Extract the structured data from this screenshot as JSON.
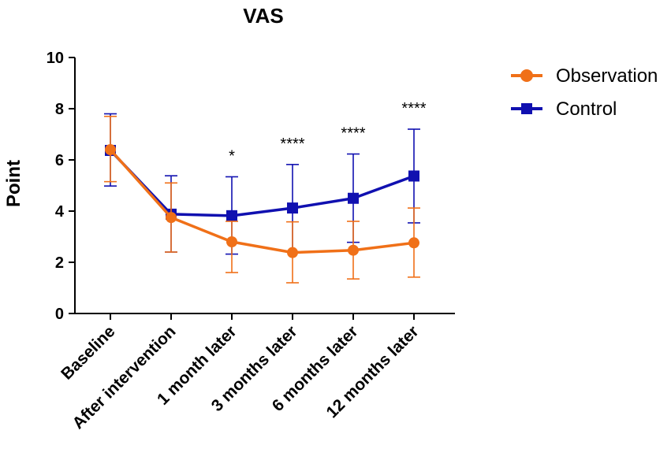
{
  "chart_data": {
    "type": "line",
    "title": "VAS",
    "xlabel": "",
    "ylabel": "Point",
    "ylim": [
      0,
      10
    ],
    "yticks": [
      "0",
      "2",
      "4",
      "6",
      "8",
      "10"
    ],
    "categories": [
      "Baseline",
      "After intervention",
      "1 month later",
      "3 months later",
      "6 months later",
      "12 months later"
    ],
    "series": [
      {
        "name": "Observation",
        "color": "#f07018",
        "marker": "circle",
        "values": [
          6.4,
          3.75,
          2.8,
          2.38,
          2.47,
          2.76
        ],
        "error_upper": [
          7.7,
          5.1,
          3.6,
          3.58,
          3.6,
          4.12
        ],
        "error_lower": [
          5.15,
          2.4,
          1.6,
          1.2,
          1.35,
          1.42
        ]
      },
      {
        "name": "Control",
        "color": "#1010b0",
        "marker": "square",
        "values": [
          6.37,
          3.88,
          3.82,
          4.12,
          4.5,
          5.37
        ],
        "error_upper": [
          7.8,
          5.38,
          5.34,
          5.82,
          6.23,
          7.2
        ],
        "error_lower": [
          4.98,
          2.4,
          2.32,
          2.41,
          2.78,
          3.54
        ]
      }
    ],
    "annotations": [
      "",
      "",
      "*",
      "****",
      "****",
      "****"
    ],
    "legend_position": "top-right"
  }
}
